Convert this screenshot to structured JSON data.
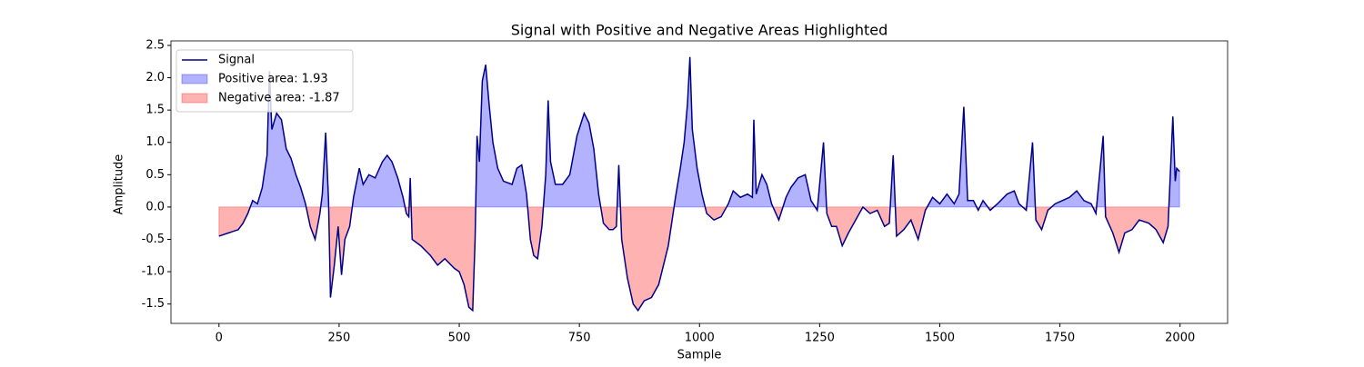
{
  "chart_data": {
    "type": "line",
    "title": "Signal with Positive and Negative Areas Highlighted",
    "xlabel": "Sample",
    "ylabel": "Amplitude",
    "x": [
      0,
      20,
      40,
      50,
      60,
      70,
      80,
      90,
      100,
      105,
      110,
      120,
      130,
      140,
      150,
      160,
      170,
      180,
      190,
      200,
      210,
      215,
      222,
      228,
      232,
      240,
      248,
      255,
      262,
      272,
      280,
      292,
      300,
      312,
      325,
      340,
      350,
      360,
      372,
      383,
      390,
      395,
      398,
      402,
      420,
      440,
      455,
      470,
      490,
      500,
      510,
      520,
      528,
      533,
      537,
      542,
      548,
      555,
      562,
      570,
      580,
      592,
      610,
      620,
      630,
      640,
      648,
      655,
      663,
      672,
      680,
      685,
      690,
      700,
      715,
      730,
      745,
      760,
      770,
      780,
      790,
      800,
      812,
      820,
      827,
      832,
      838,
      850,
      862,
      872,
      885,
      900,
      915,
      935,
      950,
      960,
      968,
      975,
      980,
      985,
      995,
      1005,
      1015,
      1030,
      1045,
      1060,
      1070,
      1085,
      1100,
      1110,
      1113,
      1118,
      1130,
      1140,
      1150,
      1165,
      1180,
      1190,
      1205,
      1220,
      1232,
      1245,
      1258,
      1265,
      1275,
      1285,
      1297,
      1310,
      1325,
      1340,
      1355,
      1370,
      1385,
      1395,
      1403,
      1410,
      1425,
      1440,
      1455,
      1470,
      1485,
      1500,
      1515,
      1530,
      1540,
      1550,
      1558,
      1570,
      1580,
      1590,
      1605,
      1620,
      1640,
      1655,
      1665,
      1680,
      1693,
      1700,
      1712,
      1725,
      1740,
      1755,
      1770,
      1785,
      1800,
      1815,
      1825,
      1840,
      1845,
      1860,
      1873,
      1885,
      1900,
      1915,
      1935,
      1950,
      1965,
      1975,
      1985,
      1990,
      1993,
      1999
    ],
    "series": [
      {
        "name": "Signal",
        "color": "#00008b",
        "values": [
          -0.45,
          -0.4,
          -0.35,
          -0.25,
          -0.1,
          0.1,
          0.05,
          0.3,
          0.8,
          2.1,
          1.2,
          1.45,
          1.35,
          0.9,
          0.75,
          0.5,
          0.3,
          0.05,
          -0.3,
          -0.5,
          -0.1,
          0.2,
          1.15,
          0.1,
          -1.4,
          -0.9,
          -0.3,
          -1.05,
          -0.5,
          -0.3,
          0.15,
          0.6,
          0.35,
          0.5,
          0.45,
          0.7,
          0.8,
          0.7,
          0.45,
          0.15,
          -0.1,
          -0.15,
          0.45,
          -0.5,
          -0.6,
          -0.75,
          -0.9,
          -0.8,
          -0.95,
          -1.0,
          -1.2,
          -1.55,
          -1.6,
          -0.5,
          1.1,
          0.7,
          1.95,
          2.2,
          1.6,
          1.0,
          0.6,
          0.4,
          0.35,
          0.6,
          0.65,
          0.2,
          -0.5,
          -0.75,
          -0.8,
          -0.3,
          0.5,
          1.65,
          0.7,
          0.35,
          0.35,
          0.5,
          1.1,
          1.45,
          1.3,
          0.9,
          0.2,
          -0.25,
          -0.35,
          -0.35,
          -0.3,
          0.65,
          -0.5,
          -1.1,
          -1.5,
          -1.6,
          -1.45,
          -1.4,
          -1.2,
          -0.6,
          0.15,
          0.6,
          1.0,
          1.6,
          2.32,
          1.2,
          0.6,
          0.2,
          -0.1,
          -0.2,
          -0.15,
          0.05,
          0.25,
          0.15,
          0.2,
          0.15,
          1.35,
          0.2,
          0.5,
          0.35,
          0.05,
          -0.2,
          0.15,
          0.3,
          0.45,
          0.5,
          0.1,
          -0.05,
          1.0,
          -0.1,
          -0.3,
          -0.3,
          -0.6,
          -0.4,
          -0.2,
          0.0,
          -0.1,
          -0.05,
          -0.3,
          -0.25,
          0.8,
          -0.45,
          -0.35,
          -0.2,
          -0.5,
          -0.05,
          0.15,
          0.05,
          0.2,
          0.05,
          0.2,
          1.55,
          0.1,
          0.1,
          -0.05,
          0.1,
          -0.05,
          0.05,
          0.2,
          0.25,
          0.05,
          -0.05,
          1.0,
          -0.2,
          -0.35,
          -0.05,
          0.05,
          0.1,
          0.15,
          0.25,
          0.1,
          0.05,
          -0.1,
          1.1,
          -0.15,
          -0.4,
          -0.7,
          -0.4,
          -0.35,
          -0.2,
          -0.25,
          -0.35,
          -0.55,
          -0.3,
          1.4,
          0.4,
          0.6,
          0.55
        ]
      }
    ],
    "areas": [
      {
        "name": "Positive area: 1.93",
        "color": "#0000ff",
        "side": "above"
      },
      {
        "name": "Negative area: -1.87",
        "color": "#ff0000",
        "side": "below"
      }
    ],
    "xlim": [
      -99.95,
      2098.95
    ],
    "xticks": [
      0,
      250,
      500,
      750,
      1000,
      1250,
      1500,
      1750,
      2000
    ],
    "ylim": [
      -1.8,
      2.57
    ],
    "yticks": [
      -1.5,
      {
        "value": -1,
        "label": "-1.0"
      },
      -0.5,
      {
        "value": 0,
        "label": "0.0"
      },
      0.5,
      {
        "value": 1,
        "label": "1.0"
      },
      1.5,
      {
        "value": 2,
        "label": "2.0"
      },
      2.5
    ],
    "grid": false,
    "legend": "upper-left"
  }
}
